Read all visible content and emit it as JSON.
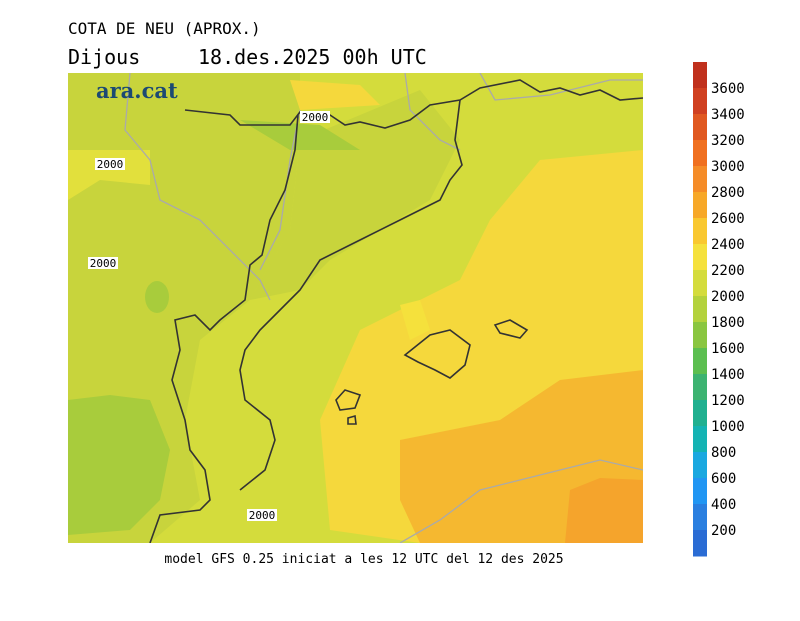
{
  "header": {
    "title": "COTA DE NEU (APROX.)",
    "day": "Dijous",
    "date": "18.des.2025 00h UTC"
  },
  "logo": "ara.cat",
  "contour_labels": [
    "2000",
    "2000",
    "2000",
    "2000"
  ],
  "footer": "model GFS 0.25 iniciat a les 12 UTC del 12 des 2025",
  "colorbar": {
    "levels": [
      3600,
      3400,
      3200,
      3000,
      2800,
      2600,
      2400,
      2200,
      2000,
      1800,
      1600,
      1400,
      1200,
      1000,
      800,
      600,
      400,
      200
    ],
    "colors": [
      "#c0301c",
      "#d04020",
      "#e05820",
      "#f07020",
      "#f58c28",
      "#f7a828",
      "#f9c830",
      "#f5e13c",
      "#d4dc3c",
      "#b4d23c",
      "#8ac640",
      "#5cbf50",
      "#3cb371",
      "#20b090",
      "#14b3b3",
      "#1aa8e0",
      "#2196f3",
      "#2a7fe0",
      "#2b6cd4"
    ]
  }
}
